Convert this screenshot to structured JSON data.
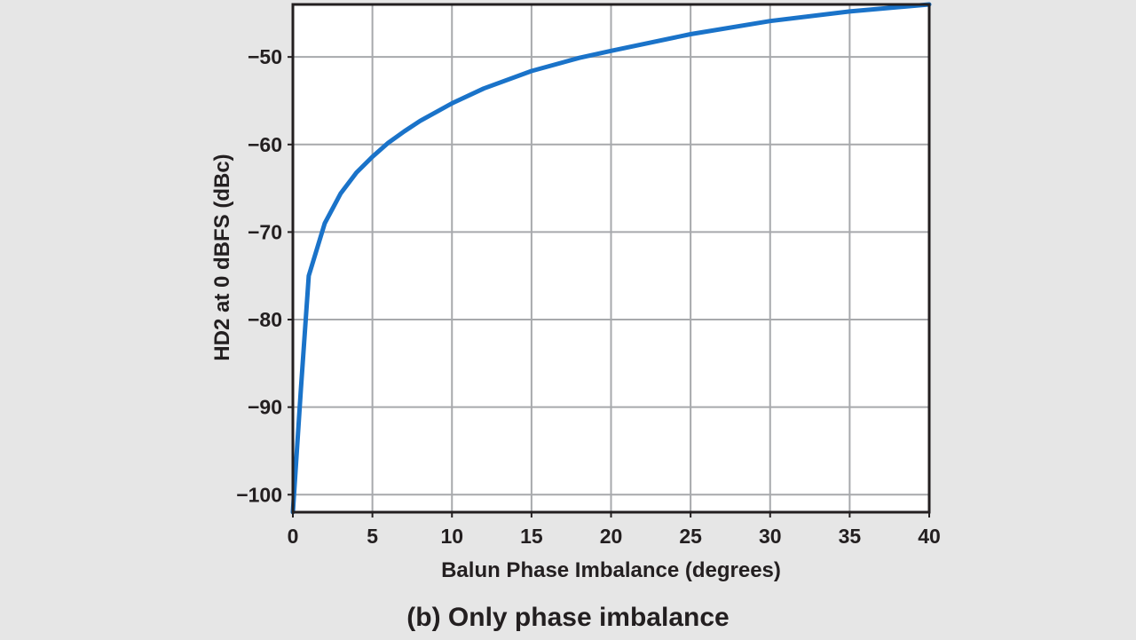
{
  "chart_data": {
    "type": "line",
    "xlabel": "Balun Phase Imbalance (degrees)",
    "ylabel": "HD2 at 0 dBFS (dBc)",
    "caption": "(b) Only phase imbalance",
    "xlim": [
      0,
      40
    ],
    "ylim": [
      -102,
      -44
    ],
    "xticks": [
      0,
      5,
      10,
      15,
      20,
      25,
      30,
      35,
      40
    ],
    "yticks": [
      -100,
      -90,
      -80,
      -70,
      -60,
      -50
    ],
    "grid": true,
    "series": [
      {
        "color": "#1a73c9",
        "x": [
          0,
          0.5,
          1,
          2,
          3,
          4,
          5,
          6,
          7,
          8,
          10,
          12,
          15,
          18,
          20,
          25,
          30,
          35,
          40
        ],
        "y": [
          -102,
          -88,
          -75,
          -69,
          -65.6,
          -63.2,
          -61.4,
          -59.8,
          -58.5,
          -57.3,
          -55.3,
          -53.6,
          -51.6,
          -50.1,
          -49.3,
          -47.4,
          -45.9,
          -44.8,
          -44
        ]
      }
    ]
  }
}
